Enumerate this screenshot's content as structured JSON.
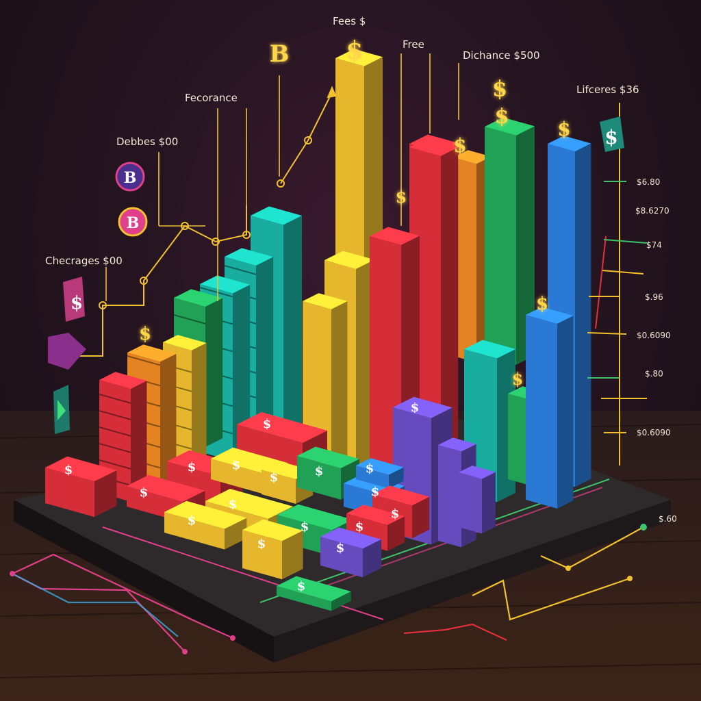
{
  "labels": [
    {
      "id": "fees",
      "text": "Fees $"
    },
    {
      "id": "free",
      "text": "Free"
    },
    {
      "id": "dichance",
      "text": "Dichance $500"
    },
    {
      "id": "fecorance",
      "text": "Fecorance"
    },
    {
      "id": "lifceres",
      "text": "Lifceres $36"
    },
    {
      "id": "debbes",
      "text": "Debbes $00"
    },
    {
      "id": "checrages",
      "text": "Checrages $00"
    }
  ],
  "ticks": [
    "$6.80",
    "$8.6270",
    "$74",
    "$.96",
    "$0.6090",
    "$.80",
    "$0.6090",
    "$.60"
  ],
  "colors": {
    "red": "#e0303c",
    "orange": "#f08a24",
    "yellow": "#f2c12e",
    "green": "#22a95a",
    "teal": "#19b6a6",
    "blue": "#2b7fe0",
    "purple": "#6a4fc8",
    "board": "#2b2629",
    "glow": "#ffd54a"
  },
  "icon_names": [
    "bitcoin-coin-icon",
    "dollar-sign-icon",
    "dollar-badge-icon",
    "play-tile-icon"
  ]
}
